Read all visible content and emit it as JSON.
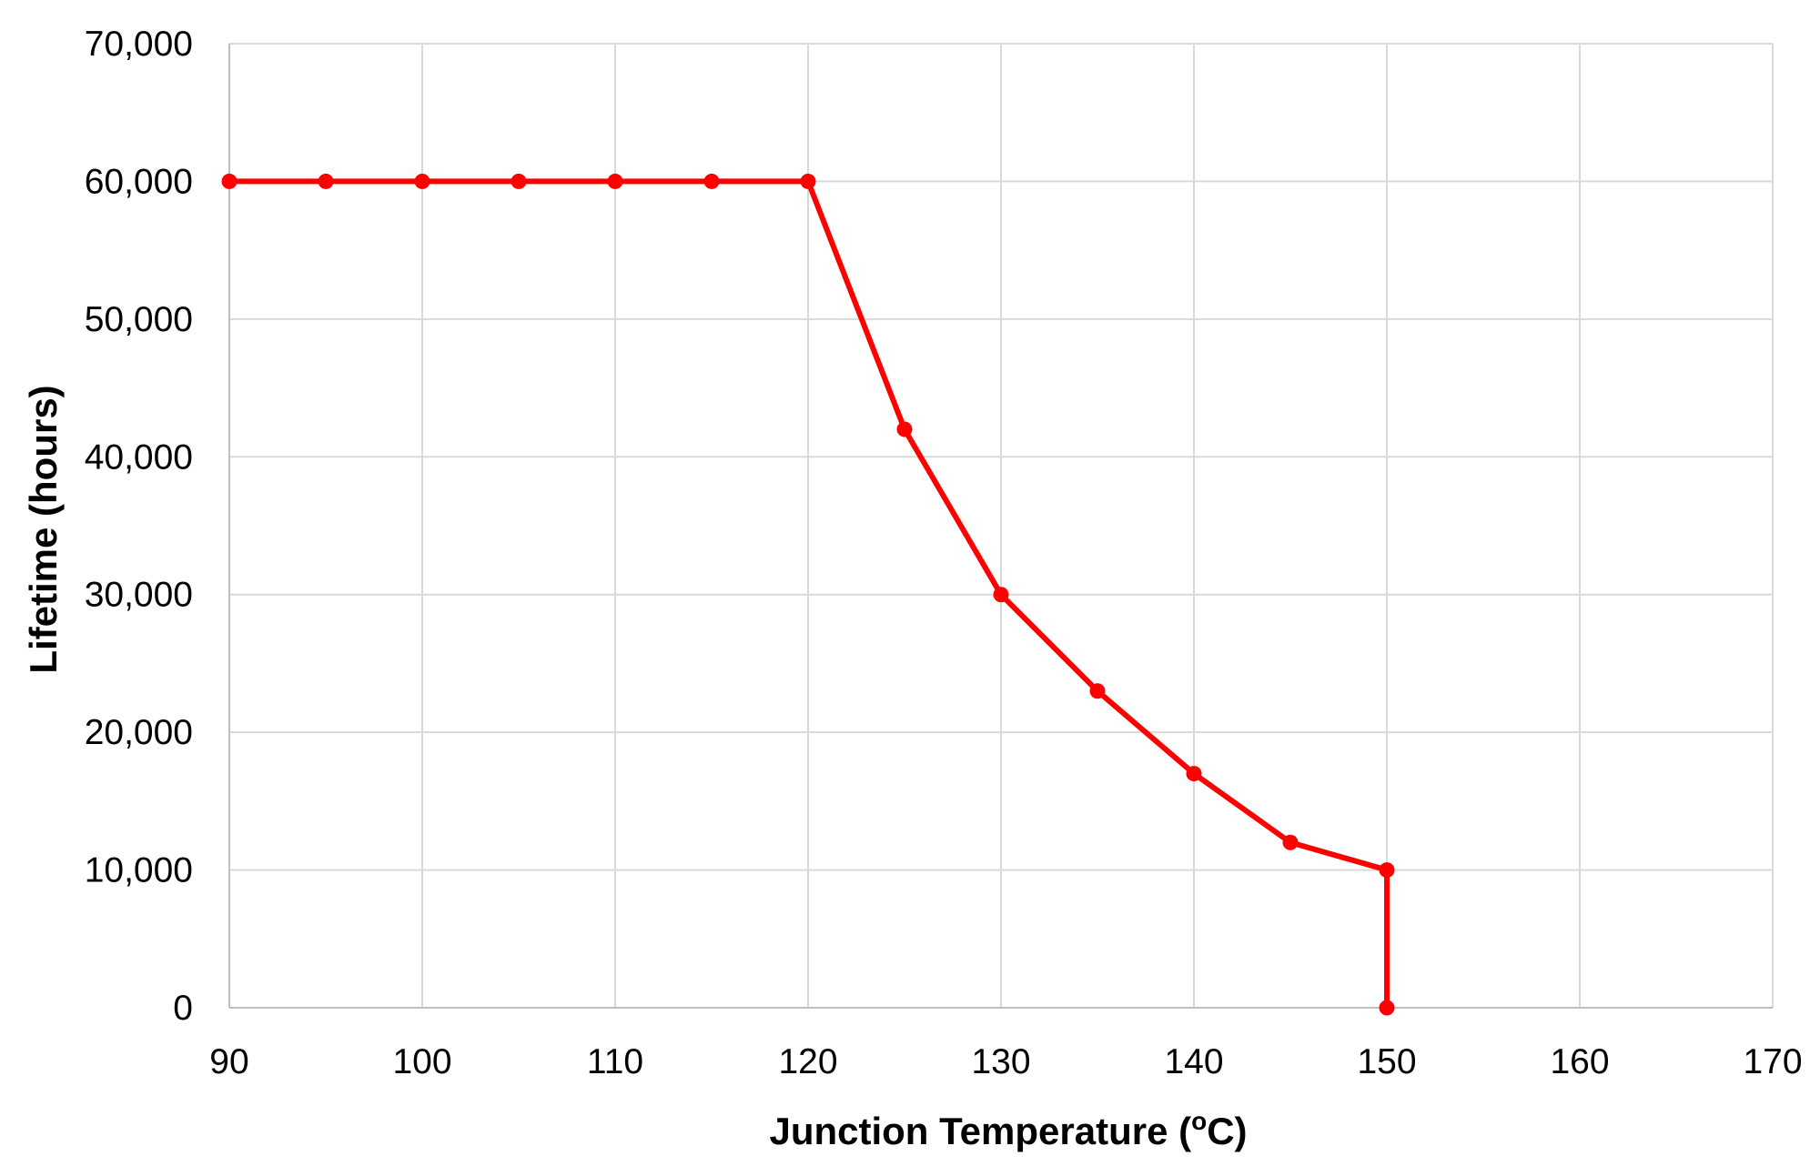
{
  "chart_data": {
    "type": "line",
    "title": "",
    "xlabel": {
      "text": "Junction Temperature (",
      "superscript": "o",
      "suffix": "C)"
    },
    "ylabel": "Lifetime (hours)",
    "xlim": [
      90,
      170
    ],
    "ylim": [
      0,
      70000
    ],
    "x_ticks": [
      90,
      100,
      110,
      120,
      130,
      140,
      150,
      160,
      170
    ],
    "x_tick_labels": [
      "90",
      "100",
      "110",
      "120",
      "130",
      "140",
      "150",
      "160",
      "170"
    ],
    "y_ticks": [
      0,
      10000,
      20000,
      30000,
      40000,
      50000,
      60000,
      70000
    ],
    "y_tick_labels": [
      "0",
      "10,000",
      "20,000",
      "30,000",
      "40,000",
      "50,000",
      "60,000",
      "70,000"
    ],
    "grid": true,
    "legend": "none",
    "series": [
      {
        "name": "Lifetime",
        "color": "#ff0000",
        "x": [
          90,
          95,
          100,
          105,
          110,
          115,
          120,
          125,
          130,
          135,
          140,
          145,
          150,
          150
        ],
        "values": [
          60000,
          60000,
          60000,
          60000,
          60000,
          60000,
          60000,
          42000,
          30000,
          23000,
          17000,
          12000,
          10000,
          0
        ]
      }
    ]
  }
}
